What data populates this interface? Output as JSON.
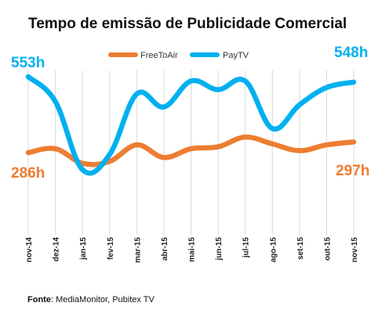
{
  "chart_data": {
    "type": "line",
    "title": "Tempo de emissão de Publicidade Comercial",
    "categories": [
      "nov-14",
      "dez-14",
      "jan-15",
      "fev-15",
      "mar-15",
      "abr-15",
      "mai-15",
      "jun-15",
      "jul-15",
      "ago-15",
      "set-15",
      "out-15",
      "nov-15"
    ],
    "series": [
      {
        "name": "FreeToAir",
        "color": "#ED7D31",
        "values": [
          286,
          290,
          275,
          277,
          294,
          281,
          290,
          292,
          302,
          295,
          288,
          294,
          297
        ]
      },
      {
        "name": "PayTV",
        "color": "#00B0F0",
        "values": [
          553,
          530,
          467,
          481,
          537,
          525,
          549,
          541,
          549,
          505,
          527,
          543,
          548
        ]
      }
    ],
    "callouts": [
      {
        "text": "553h",
        "series": "PayTV",
        "color": "#00B0F0"
      },
      {
        "text": "548h",
        "series": "PayTV",
        "color": "#00B0F0"
      },
      {
        "text": "286h",
        "series": "FreeToAir",
        "color": "#ED7D31"
      },
      {
        "text": "297h",
        "series": "FreeToAir",
        "color": "#ED7D31"
      }
    ],
    "legend_position": "top-center",
    "grid": "vertical"
  },
  "source": {
    "label": "Fonte",
    "separator": ":",
    "text": " MediaMonitor, Pubitex TV"
  }
}
